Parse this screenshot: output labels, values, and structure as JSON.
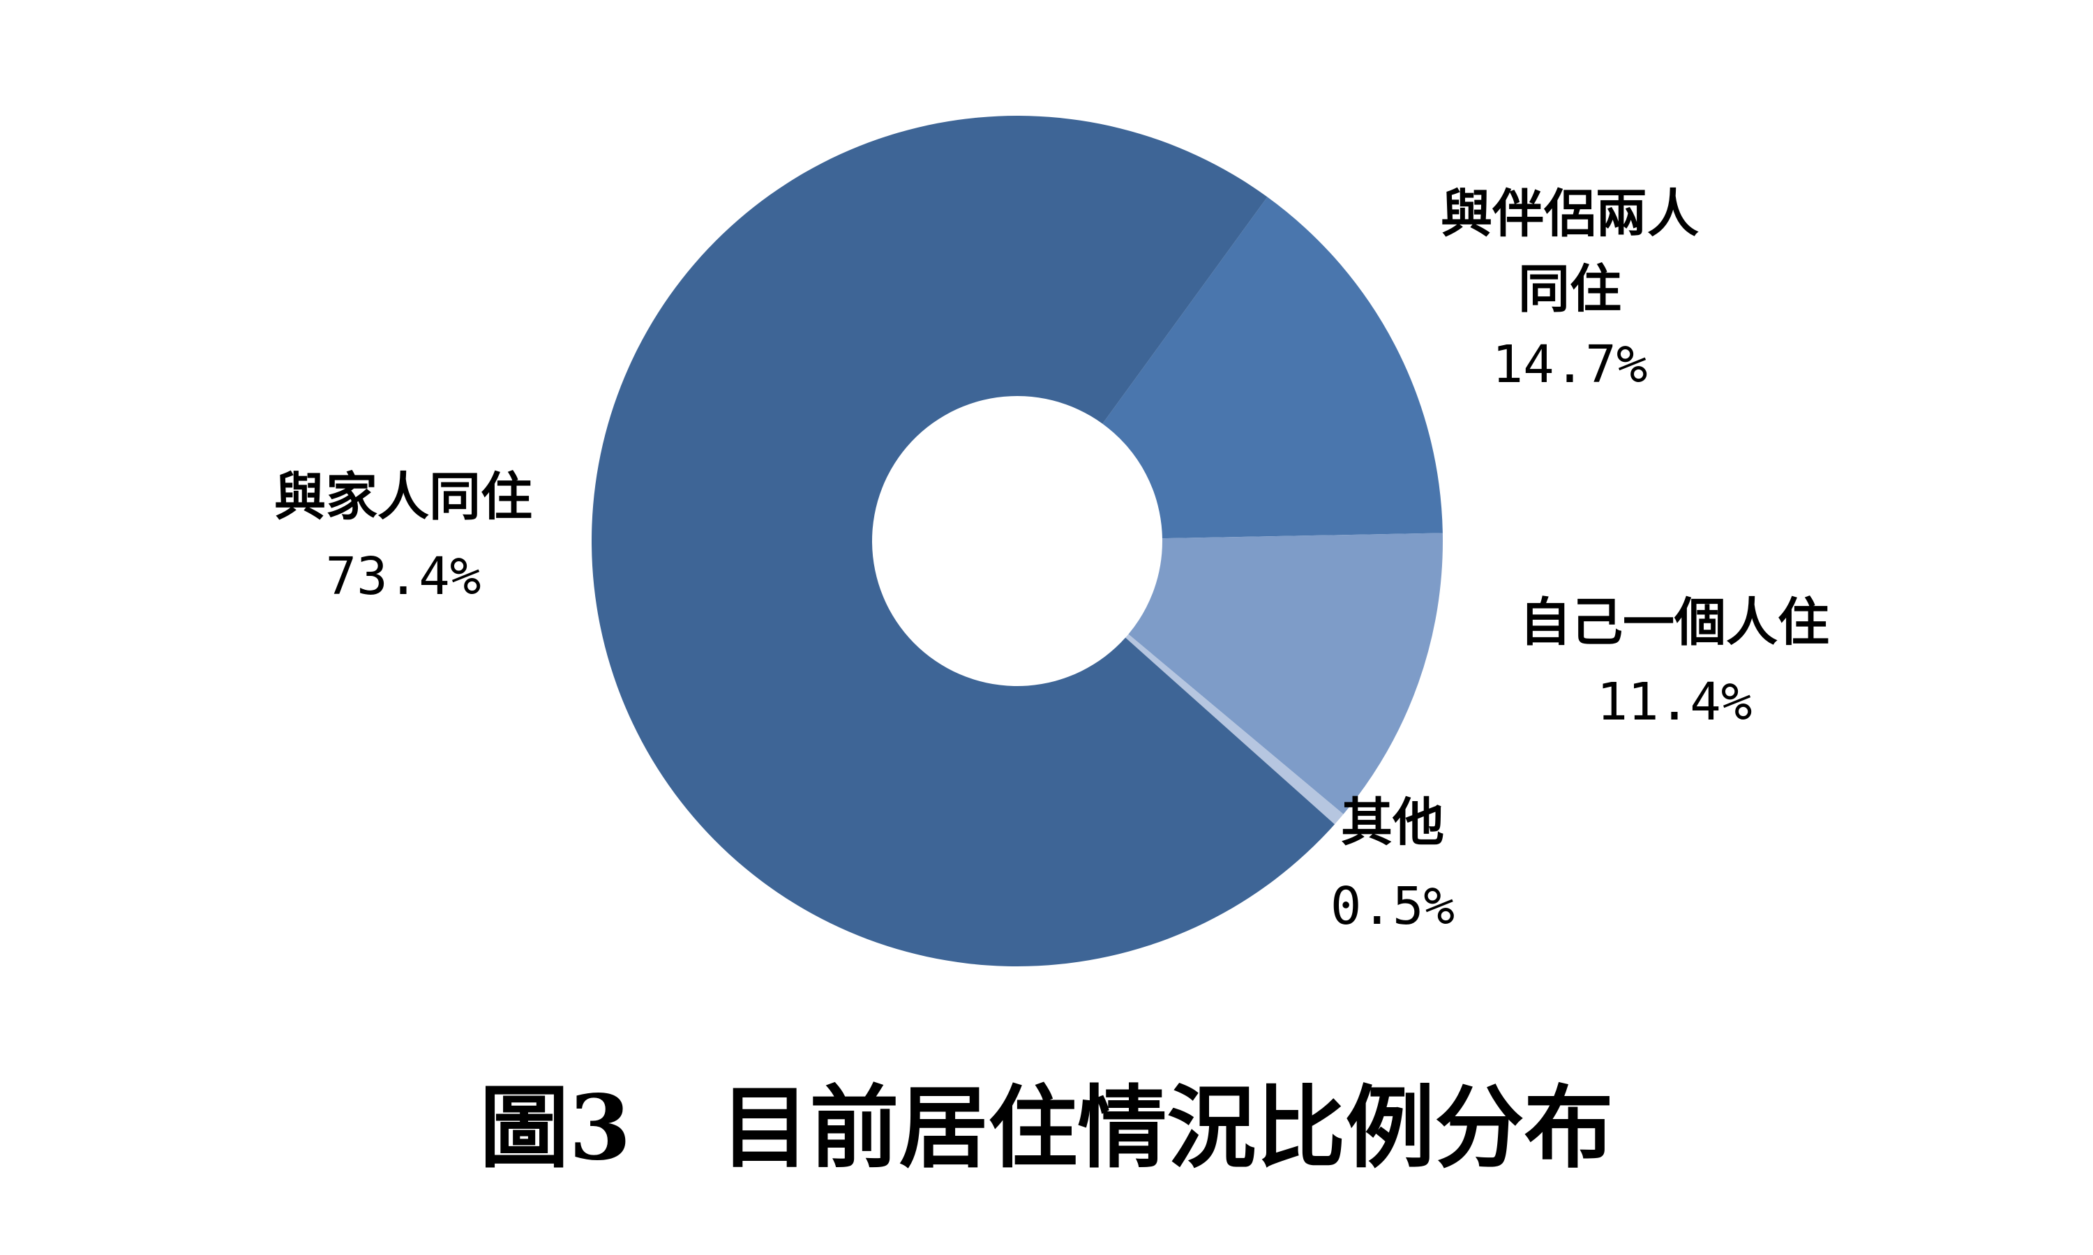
{
  "chart_data": {
    "type": "donut",
    "title": "圖3　目前居住情況比例分布",
    "unit": "%",
    "slices": [
      {
        "label_lines": [
          "與伴侶兩人",
          "同住"
        ],
        "value": 14.7,
        "value_text": "14.7%",
        "color": "#4a76ad"
      },
      {
        "label_lines": [
          "自己一個人住"
        ],
        "value": 11.4,
        "value_text": "11.4%",
        "color": "#7e9cc8"
      },
      {
        "label_lines": [
          "其他"
        ],
        "value": 0.5,
        "value_text": "0.5%",
        "color": "#b6c6e0"
      },
      {
        "label_lines": [
          "與家人同住"
        ],
        "value": 73.4,
        "value_text": "73.4%",
        "color": "#3e6596"
      }
    ],
    "start_angle_deg": 36,
    "direction": "clockwise",
    "hole": "small",
    "legend": "none"
  }
}
